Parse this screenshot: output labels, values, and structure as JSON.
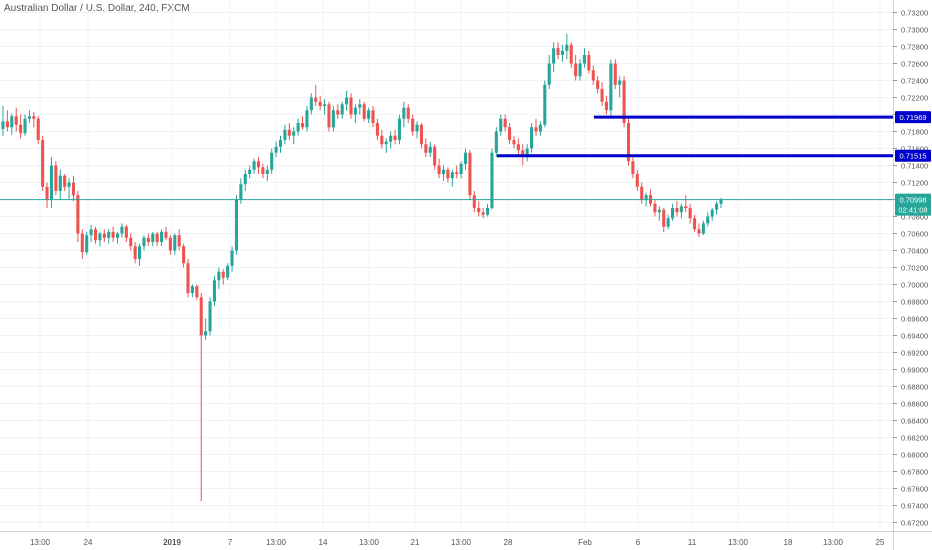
{
  "header": {
    "title": "Australian Dollar / U.S. Dollar, 240, FXCM"
  },
  "chart_data": {
    "type": "candlestick",
    "title": "Australian Dollar / U.S. Dollar, 240, FXCM",
    "ylim": [
      0.671,
      0.733
    ],
    "y_ticks": [
      "0.73200",
      "0.73000",
      "0.72800",
      "0.72600",
      "0.72400",
      "0.72200",
      "0.72000",
      "0.71800",
      "0.71600",
      "0.71400",
      "0.71200",
      "0.71000",
      "0.70800",
      "0.70600",
      "0.70400",
      "0.70200",
      "0.70000",
      "0.69800",
      "0.69600",
      "0.69400",
      "0.69200",
      "0.69000",
      "0.68800",
      "0.68600",
      "0.68400",
      "0.68200",
      "0.68000",
      "0.67800",
      "0.67600",
      "0.67400",
      "0.67200"
    ],
    "x_ticks": [
      {
        "label": "13:00",
        "bold": false
      },
      {
        "label": "24",
        "bold": false
      },
      {
        "label": "2019",
        "bold": true
      },
      {
        "label": "7",
        "bold": false
      },
      {
        "label": "13:00",
        "bold": false
      },
      {
        "label": "14",
        "bold": false
      },
      {
        "label": "13:00",
        "bold": false
      },
      {
        "label": "21",
        "bold": false
      },
      {
        "label": "13:00",
        "bold": false
      },
      {
        "label": "28",
        "bold": false
      },
      {
        "label": "Feb",
        "bold": false
      },
      {
        "label": "6",
        "bold": false
      },
      {
        "label": "11",
        "bold": false
      },
      {
        "label": "13:00",
        "bold": false
      },
      {
        "label": "18",
        "bold": false
      },
      {
        "label": "13:00",
        "bold": false
      },
      {
        "label": "25",
        "bold": false
      }
    ],
    "current_price": {
      "value": 0.70998,
      "label": "0.70998",
      "countdown": "02:41:08"
    },
    "levels": [
      {
        "value": 0.71969,
        "label": "0.71969"
      },
      {
        "value": 0.71515,
        "label": "0.71515"
      }
    ],
    "colors": {
      "up": "#26a69a",
      "down": "#ef5350",
      "level": "#0000cc",
      "price": "#26a69a",
      "grid": "#f0f3f6"
    },
    "candles": [
      {
        "o": 0.7183,
        "h": 0.721,
        "l": 0.7175,
        "c": 0.7192
      },
      {
        "o": 0.7192,
        "h": 0.7205,
        "l": 0.718,
        "c": 0.7185
      },
      {
        "o": 0.7185,
        "h": 0.7201,
        "l": 0.7176,
        "c": 0.7198
      },
      {
        "o": 0.7198,
        "h": 0.7208,
        "l": 0.718,
        "c": 0.7188
      },
      {
        "o": 0.7188,
        "h": 0.72,
        "l": 0.7172,
        "c": 0.7178
      },
      {
        "o": 0.7178,
        "h": 0.72,
        "l": 0.7175,
        "c": 0.7195
      },
      {
        "o": 0.7195,
        "h": 0.7205,
        "l": 0.719,
        "c": 0.7198
      },
      {
        "o": 0.7198,
        "h": 0.7203,
        "l": 0.7185,
        "c": 0.7195
      },
      {
        "o": 0.7195,
        "h": 0.7198,
        "l": 0.7165,
        "c": 0.717
      },
      {
        "o": 0.717,
        "h": 0.7175,
        "l": 0.711,
        "c": 0.7115
      },
      {
        "o": 0.7115,
        "h": 0.712,
        "l": 0.709,
        "c": 0.71
      },
      {
        "o": 0.71,
        "h": 0.715,
        "l": 0.709,
        "c": 0.714
      },
      {
        "o": 0.714,
        "h": 0.7145,
        "l": 0.7105,
        "c": 0.711
      },
      {
        "o": 0.711,
        "h": 0.7135,
        "l": 0.71,
        "c": 0.7128
      },
      {
        "o": 0.7128,
        "h": 0.713,
        "l": 0.711,
        "c": 0.7115
      },
      {
        "o": 0.7115,
        "h": 0.7125,
        "l": 0.71,
        "c": 0.712
      },
      {
        "o": 0.712,
        "h": 0.7128,
        "l": 0.7098,
        "c": 0.7105
      },
      {
        "o": 0.7105,
        "h": 0.711,
        "l": 0.705,
        "c": 0.706
      },
      {
        "o": 0.706,
        "h": 0.7065,
        "l": 0.703,
        "c": 0.7038
      },
      {
        "o": 0.7038,
        "h": 0.7062,
        "l": 0.7035,
        "c": 0.7058
      },
      {
        "o": 0.7058,
        "h": 0.707,
        "l": 0.705,
        "c": 0.7065
      },
      {
        "o": 0.7065,
        "h": 0.7068,
        "l": 0.7048,
        "c": 0.7052
      },
      {
        "o": 0.7052,
        "h": 0.7062,
        "l": 0.7045,
        "c": 0.706
      },
      {
        "o": 0.706,
        "h": 0.7065,
        "l": 0.705,
        "c": 0.7055
      },
      {
        "o": 0.7055,
        "h": 0.7065,
        "l": 0.7048,
        "c": 0.7062
      },
      {
        "o": 0.7062,
        "h": 0.7068,
        "l": 0.705,
        "c": 0.7055
      },
      {
        "o": 0.7055,
        "h": 0.7062,
        "l": 0.7048,
        "c": 0.706
      },
      {
        "o": 0.706,
        "h": 0.7072,
        "l": 0.7055,
        "c": 0.7068
      },
      {
        "o": 0.7068,
        "h": 0.707,
        "l": 0.705,
        "c": 0.7055
      },
      {
        "o": 0.7055,
        "h": 0.706,
        "l": 0.704,
        "c": 0.7045
      },
      {
        "o": 0.7045,
        "h": 0.705,
        "l": 0.7025,
        "c": 0.703
      },
      {
        "o": 0.703,
        "h": 0.7048,
        "l": 0.7022,
        "c": 0.7045
      },
      {
        "o": 0.7045,
        "h": 0.7058,
        "l": 0.704,
        "c": 0.7055
      },
      {
        "o": 0.7055,
        "h": 0.706,
        "l": 0.7045,
        "c": 0.705
      },
      {
        "o": 0.705,
        "h": 0.7062,
        "l": 0.7045,
        "c": 0.706
      },
      {
        "o": 0.706,
        "h": 0.7062,
        "l": 0.7045,
        "c": 0.705
      },
      {
        "o": 0.705,
        "h": 0.7065,
        "l": 0.7045,
        "c": 0.7062
      },
      {
        "o": 0.7062,
        "h": 0.7068,
        "l": 0.7052,
        "c": 0.7055
      },
      {
        "o": 0.7055,
        "h": 0.7058,
        "l": 0.7035,
        "c": 0.704
      },
      {
        "o": 0.704,
        "h": 0.706,
        "l": 0.7035,
        "c": 0.7058
      },
      {
        "o": 0.7058,
        "h": 0.7065,
        "l": 0.704,
        "c": 0.7045
      },
      {
        "o": 0.7045,
        "h": 0.7048,
        "l": 0.702,
        "c": 0.7025
      },
      {
        "o": 0.7025,
        "h": 0.703,
        "l": 0.6985,
        "c": 0.699
      },
      {
        "o": 0.699,
        "h": 0.7,
        "l": 0.6985,
        "c": 0.6998
      },
      {
        "o": 0.6998,
        "h": 0.7,
        "l": 0.6982,
        "c": 0.6985
      },
      {
        "o": 0.6985,
        "h": 0.699,
        "l": 0.6745,
        "c": 0.694
      },
      {
        "o": 0.694,
        "h": 0.696,
        "l": 0.6935,
        "c": 0.6945
      },
      {
        "o": 0.6945,
        "h": 0.6985,
        "l": 0.694,
        "c": 0.698
      },
      {
        "o": 0.698,
        "h": 0.701,
        "l": 0.6975,
        "c": 0.7005
      },
      {
        "o": 0.7005,
        "h": 0.702,
        "l": 0.6995,
        "c": 0.7015
      },
      {
        "o": 0.7015,
        "h": 0.7018,
        "l": 0.7,
        "c": 0.7008
      },
      {
        "o": 0.7008,
        "h": 0.7025,
        "l": 0.7005,
        "c": 0.7022
      },
      {
        "o": 0.7022,
        "h": 0.7045,
        "l": 0.7015,
        "c": 0.704
      },
      {
        "o": 0.704,
        "h": 0.7105,
        "l": 0.7035,
        "c": 0.71
      },
      {
        "o": 0.71,
        "h": 0.7125,
        "l": 0.7095,
        "c": 0.7118
      },
      {
        "o": 0.7118,
        "h": 0.7135,
        "l": 0.711,
        "c": 0.713
      },
      {
        "o": 0.713,
        "h": 0.714,
        "l": 0.7125,
        "c": 0.7135
      },
      {
        "o": 0.7135,
        "h": 0.7148,
        "l": 0.713,
        "c": 0.7145
      },
      {
        "o": 0.7145,
        "h": 0.715,
        "l": 0.713,
        "c": 0.7138
      },
      {
        "o": 0.7138,
        "h": 0.7142,
        "l": 0.7125,
        "c": 0.713
      },
      {
        "o": 0.713,
        "h": 0.714,
        "l": 0.7122,
        "c": 0.7135
      },
      {
        "o": 0.7135,
        "h": 0.716,
        "l": 0.713,
        "c": 0.7155
      },
      {
        "o": 0.7155,
        "h": 0.7168,
        "l": 0.715,
        "c": 0.7162
      },
      {
        "o": 0.7162,
        "h": 0.7175,
        "l": 0.7155,
        "c": 0.717
      },
      {
        "o": 0.717,
        "h": 0.7188,
        "l": 0.7165,
        "c": 0.7182
      },
      {
        "o": 0.7182,
        "h": 0.719,
        "l": 0.717,
        "c": 0.7175
      },
      {
        "o": 0.7175,
        "h": 0.7185,
        "l": 0.7165,
        "c": 0.718
      },
      {
        "o": 0.718,
        "h": 0.7195,
        "l": 0.7175,
        "c": 0.719
      },
      {
        "o": 0.719,
        "h": 0.7198,
        "l": 0.7182,
        "c": 0.7185
      },
      {
        "o": 0.7185,
        "h": 0.721,
        "l": 0.718,
        "c": 0.7205
      },
      {
        "o": 0.7205,
        "h": 0.7225,
        "l": 0.72,
        "c": 0.722
      },
      {
        "o": 0.722,
        "h": 0.7235,
        "l": 0.721,
        "c": 0.7215
      },
      {
        "o": 0.7215,
        "h": 0.7222,
        "l": 0.7205,
        "c": 0.721
      },
      {
        "o": 0.721,
        "h": 0.7218,
        "l": 0.72,
        "c": 0.7212
      },
      {
        "o": 0.7212,
        "h": 0.7215,
        "l": 0.718,
        "c": 0.7185
      },
      {
        "o": 0.7185,
        "h": 0.721,
        "l": 0.718,
        "c": 0.7205
      },
      {
        "o": 0.7205,
        "h": 0.7212,
        "l": 0.7195,
        "c": 0.72
      },
      {
        "o": 0.72,
        "h": 0.7215,
        "l": 0.7195,
        "c": 0.7212
      },
      {
        "o": 0.7212,
        "h": 0.7228,
        "l": 0.7205,
        "c": 0.722
      },
      {
        "o": 0.722,
        "h": 0.7225,
        "l": 0.7195,
        "c": 0.72
      },
      {
        "o": 0.72,
        "h": 0.7212,
        "l": 0.719,
        "c": 0.7208
      },
      {
        "o": 0.7208,
        "h": 0.7218,
        "l": 0.72,
        "c": 0.7212
      },
      {
        "o": 0.7212,
        "h": 0.7215,
        "l": 0.7192,
        "c": 0.7195
      },
      {
        "o": 0.7195,
        "h": 0.7208,
        "l": 0.719,
        "c": 0.7205
      },
      {
        "o": 0.7205,
        "h": 0.721,
        "l": 0.7185,
        "c": 0.719
      },
      {
        "o": 0.719,
        "h": 0.7195,
        "l": 0.717,
        "c": 0.7175
      },
      {
        "o": 0.7175,
        "h": 0.7182,
        "l": 0.716,
        "c": 0.7165
      },
      {
        "o": 0.7165,
        "h": 0.7172,
        "l": 0.7155,
        "c": 0.7168
      },
      {
        "o": 0.7168,
        "h": 0.718,
        "l": 0.716,
        "c": 0.7175
      },
      {
        "o": 0.7175,
        "h": 0.7182,
        "l": 0.7165,
        "c": 0.717
      },
      {
        "o": 0.717,
        "h": 0.72,
        "l": 0.7165,
        "c": 0.7195
      },
      {
        "o": 0.7195,
        "h": 0.7215,
        "l": 0.7185,
        "c": 0.7208
      },
      {
        "o": 0.7208,
        "h": 0.7212,
        "l": 0.719,
        "c": 0.7195
      },
      {
        "o": 0.7195,
        "h": 0.72,
        "l": 0.7175,
        "c": 0.718
      },
      {
        "o": 0.718,
        "h": 0.7192,
        "l": 0.7172,
        "c": 0.7188
      },
      {
        "o": 0.7188,
        "h": 0.719,
        "l": 0.716,
        "c": 0.7165
      },
      {
        "o": 0.7165,
        "h": 0.7172,
        "l": 0.715,
        "c": 0.7155
      },
      {
        "o": 0.7155,
        "h": 0.7168,
        "l": 0.715,
        "c": 0.7162
      },
      {
        "o": 0.7162,
        "h": 0.7165,
        "l": 0.7135,
        "c": 0.714
      },
      {
        "o": 0.714,
        "h": 0.7148,
        "l": 0.7125,
        "c": 0.713
      },
      {
        "o": 0.713,
        "h": 0.714,
        "l": 0.7122,
        "c": 0.7135
      },
      {
        "o": 0.7135,
        "h": 0.7138,
        "l": 0.712,
        "c": 0.7125
      },
      {
        "o": 0.7125,
        "h": 0.7135,
        "l": 0.7115,
        "c": 0.7132
      },
      {
        "o": 0.7132,
        "h": 0.714,
        "l": 0.7125,
        "c": 0.713
      },
      {
        "o": 0.713,
        "h": 0.7145,
        "l": 0.7125,
        "c": 0.7142
      },
      {
        "o": 0.7142,
        "h": 0.716,
        "l": 0.7135,
        "c": 0.7155
      },
      {
        "o": 0.7155,
        "h": 0.7158,
        "l": 0.71,
        "c": 0.7105
      },
      {
        "o": 0.7105,
        "h": 0.711,
        "l": 0.7085,
        "c": 0.709
      },
      {
        "o": 0.709,
        "h": 0.7098,
        "l": 0.708,
        "c": 0.7085
      },
      {
        "o": 0.7085,
        "h": 0.709,
        "l": 0.7078,
        "c": 0.7082
      },
      {
        "o": 0.7082,
        "h": 0.7095,
        "l": 0.708,
        "c": 0.709
      },
      {
        "o": 0.709,
        "h": 0.716,
        "l": 0.7088,
        "c": 0.7155
      },
      {
        "o": 0.7155,
        "h": 0.7185,
        "l": 0.715,
        "c": 0.718
      },
      {
        "o": 0.718,
        "h": 0.72,
        "l": 0.7175,
        "c": 0.7195
      },
      {
        "o": 0.7195,
        "h": 0.72,
        "l": 0.718,
        "c": 0.7185
      },
      {
        "o": 0.7185,
        "h": 0.719,
        "l": 0.7165,
        "c": 0.717
      },
      {
        "o": 0.717,
        "h": 0.7175,
        "l": 0.716,
        "c": 0.7165
      },
      {
        "o": 0.7165,
        "h": 0.7172,
        "l": 0.715,
        "c": 0.7158
      },
      {
        "o": 0.7158,
        "h": 0.7165,
        "l": 0.714,
        "c": 0.715
      },
      {
        "o": 0.715,
        "h": 0.7165,
        "l": 0.7145,
        "c": 0.716
      },
      {
        "o": 0.716,
        "h": 0.719,
        "l": 0.7155,
        "c": 0.7185
      },
      {
        "o": 0.7185,
        "h": 0.7195,
        "l": 0.7175,
        "c": 0.718
      },
      {
        "o": 0.718,
        "h": 0.7192,
        "l": 0.7175,
        "c": 0.7188
      },
      {
        "o": 0.7188,
        "h": 0.724,
        "l": 0.7185,
        "c": 0.7235
      },
      {
        "o": 0.7235,
        "h": 0.727,
        "l": 0.723,
        "c": 0.726
      },
      {
        "o": 0.726,
        "h": 0.7285,
        "l": 0.725,
        "c": 0.7278
      },
      {
        "o": 0.7278,
        "h": 0.7285,
        "l": 0.7265,
        "c": 0.727
      },
      {
        "o": 0.727,
        "h": 0.7282,
        "l": 0.7262,
        "c": 0.7275
      },
      {
        "o": 0.7275,
        "h": 0.7295,
        "l": 0.7265,
        "c": 0.7282
      },
      {
        "o": 0.7282,
        "h": 0.7285,
        "l": 0.7255,
        "c": 0.726
      },
      {
        "o": 0.726,
        "h": 0.727,
        "l": 0.724,
        "c": 0.7245
      },
      {
        "o": 0.7245,
        "h": 0.7265,
        "l": 0.724,
        "c": 0.726
      },
      {
        "o": 0.726,
        "h": 0.7278,
        "l": 0.7255,
        "c": 0.727
      },
      {
        "o": 0.727,
        "h": 0.7275,
        "l": 0.7248,
        "c": 0.7252
      },
      {
        "o": 0.7252,
        "h": 0.7258,
        "l": 0.7235,
        "c": 0.724
      },
      {
        "o": 0.724,
        "h": 0.7245,
        "l": 0.7225,
        "c": 0.723
      },
      {
        "o": 0.723,
        "h": 0.7238,
        "l": 0.721,
        "c": 0.7215
      },
      {
        "o": 0.7215,
        "h": 0.7222,
        "l": 0.72,
        "c": 0.7205
      },
      {
        "o": 0.7205,
        "h": 0.7265,
        "l": 0.7195,
        "c": 0.726
      },
      {
        "o": 0.726,
        "h": 0.7265,
        "l": 0.723,
        "c": 0.7235
      },
      {
        "o": 0.7235,
        "h": 0.7245,
        "l": 0.722,
        "c": 0.724
      },
      {
        "o": 0.724,
        "h": 0.7245,
        "l": 0.7185,
        "c": 0.719
      },
      {
        "o": 0.719,
        "h": 0.7195,
        "l": 0.714,
        "c": 0.7145
      },
      {
        "o": 0.7145,
        "h": 0.715,
        "l": 0.7125,
        "c": 0.713
      },
      {
        "o": 0.713,
        "h": 0.7135,
        "l": 0.711,
        "c": 0.7115
      },
      {
        "o": 0.7115,
        "h": 0.712,
        "l": 0.7095,
        "c": 0.71
      },
      {
        "o": 0.71,
        "h": 0.7108,
        "l": 0.7092,
        "c": 0.7105
      },
      {
        "o": 0.7105,
        "h": 0.7112,
        "l": 0.7092,
        "c": 0.7095
      },
      {
        "o": 0.7095,
        "h": 0.71,
        "l": 0.708,
        "c": 0.7085
      },
      {
        "o": 0.7085,
        "h": 0.7092,
        "l": 0.7075,
        "c": 0.7088
      },
      {
        "o": 0.7088,
        "h": 0.709,
        "l": 0.7062,
        "c": 0.7068
      },
      {
        "o": 0.7068,
        "h": 0.7082,
        "l": 0.7065,
        "c": 0.7078
      },
      {
        "o": 0.7078,
        "h": 0.7095,
        "l": 0.7075,
        "c": 0.709
      },
      {
        "o": 0.709,
        "h": 0.7098,
        "l": 0.708,
        "c": 0.7085
      },
      {
        "o": 0.7085,
        "h": 0.7095,
        "l": 0.7078,
        "c": 0.7092
      },
      {
        "o": 0.7092,
        "h": 0.7105,
        "l": 0.7085,
        "c": 0.709
      },
      {
        "o": 0.709,
        "h": 0.7095,
        "l": 0.7072,
        "c": 0.7078
      },
      {
        "o": 0.7078,
        "h": 0.7082,
        "l": 0.7062,
        "c": 0.7065
      },
      {
        "o": 0.7065,
        "h": 0.7072,
        "l": 0.7056,
        "c": 0.706
      },
      {
        "o": 0.706,
        "h": 0.7075,
        "l": 0.7058,
        "c": 0.7072
      },
      {
        "o": 0.7072,
        "h": 0.7085,
        "l": 0.7068,
        "c": 0.708
      },
      {
        "o": 0.708,
        "h": 0.709,
        "l": 0.7075,
        "c": 0.7088
      },
      {
        "o": 0.7088,
        "h": 0.7098,
        "l": 0.7082,
        "c": 0.7095
      },
      {
        "o": 0.7095,
        "h": 0.7102,
        "l": 0.709,
        "c": 0.71
      }
    ]
  }
}
